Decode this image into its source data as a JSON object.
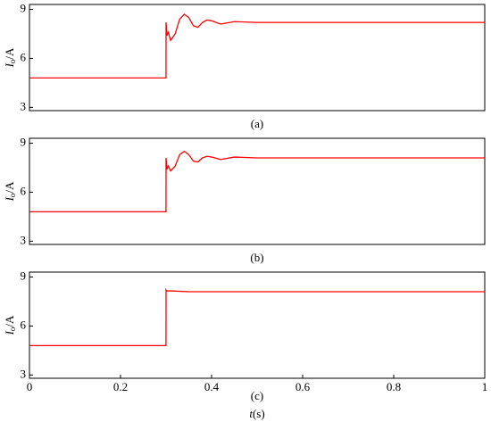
{
  "chart_data": [
    {
      "type": "line",
      "caption": "(a)",
      "ylabel": {
        "symbol": "I",
        "subscript": "o",
        "unit": "/A"
      },
      "xlim": [
        0,
        1
      ],
      "ylim": [
        2.8,
        9.3
      ],
      "yticks": [
        3,
        6,
        9
      ],
      "color": "#ff0000",
      "x": [
        0,
        0.2999,
        0.3,
        0.302,
        0.305,
        0.31,
        0.32,
        0.33,
        0.34,
        0.35,
        0.36,
        0.37,
        0.38,
        0.39,
        0.4,
        0.42,
        0.45,
        0.5,
        1
      ],
      "values": [
        4.8,
        4.8,
        8.2,
        7.4,
        7.6,
        7.1,
        7.5,
        8.4,
        8.7,
        8.5,
        8.0,
        7.9,
        8.2,
        8.35,
        8.3,
        8.1,
        8.25,
        8.2,
        8.2
      ]
    },
    {
      "type": "line",
      "caption": "(b)",
      "ylabel": {
        "symbol": "I",
        "subscript": "o",
        "unit": "/A"
      },
      "xlim": [
        0,
        1
      ],
      "ylim": [
        2.8,
        9.3
      ],
      "yticks": [
        3,
        6,
        9
      ],
      "color": "#ff0000",
      "x": [
        0,
        0.2999,
        0.3,
        0.302,
        0.305,
        0.31,
        0.32,
        0.33,
        0.34,
        0.35,
        0.36,
        0.37,
        0.38,
        0.39,
        0.4,
        0.42,
        0.45,
        0.5,
        1
      ],
      "values": [
        4.8,
        4.8,
        8.1,
        7.4,
        7.6,
        7.3,
        7.6,
        8.3,
        8.5,
        8.3,
        7.9,
        7.85,
        8.1,
        8.2,
        8.15,
        8.0,
        8.15,
        8.1,
        8.1
      ]
    },
    {
      "type": "line",
      "caption": "(c)",
      "ylabel": {
        "symbol": "I",
        "subscript": "o",
        "unit": "/A"
      },
      "xlabel": {
        "symbol": "t",
        "unit": "(s)"
      },
      "xlim": [
        0,
        1
      ],
      "ylim": [
        2.8,
        9.3
      ],
      "yticks": [
        3,
        6,
        9
      ],
      "xticks": [
        0,
        0.2,
        0.4,
        0.6,
        0.8,
        1
      ],
      "color": "#ff0000",
      "x": [
        0,
        0.2999,
        0.3,
        0.301,
        0.31,
        0.35,
        1
      ],
      "values": [
        4.8,
        4.8,
        8.2,
        8.15,
        8.15,
        8.1,
        8.1
      ]
    }
  ]
}
